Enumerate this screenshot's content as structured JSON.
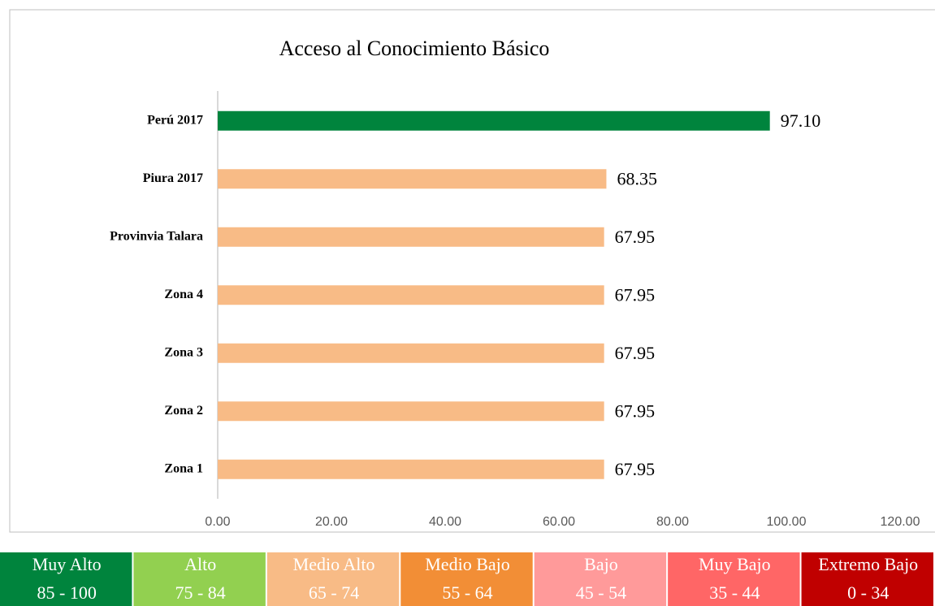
{
  "chart_data": {
    "type": "barh",
    "title": "Acceso al Conocimiento Básico",
    "categories": [
      "Perú 2017",
      "Piura 2017",
      "Provinvia Talara",
      "Zona 4",
      "Zona 3",
      "Zona 2",
      "Zona 1"
    ],
    "values": [
      97.1,
      68.35,
      67.95,
      67.95,
      67.95,
      67.95,
      67.95
    ],
    "value_labels": [
      "97.10",
      "68.35",
      "67.95",
      "67.95",
      "67.95",
      "67.95",
      "67.95"
    ],
    "colors": [
      "#00843d",
      "#f8bb86",
      "#f8bb86",
      "#f8bb86",
      "#f8bb86",
      "#f8bb86",
      "#f8bb86"
    ],
    "xlim": [
      0,
      120
    ],
    "xticks": [
      {
        "value": 0,
        "label": "0.00"
      },
      {
        "value": 20,
        "label": "20.00"
      },
      {
        "value": 40,
        "label": "40.00"
      },
      {
        "value": 60,
        "label": "60.00"
      },
      {
        "value": 80,
        "label": "80.00"
      },
      {
        "value": 100,
        "label": "100.00"
      },
      {
        "value": 120,
        "label": "120.00"
      }
    ],
    "scale": [
      {
        "label": "Muy Alto",
        "range": "85 - 100",
        "color": "#00843d"
      },
      {
        "label": "Alto",
        "range": "75 - 84",
        "color": "#92d050"
      },
      {
        "label": "Medio Alto",
        "range": "65 - 74",
        "color": "#f8bb86"
      },
      {
        "label": "Medio Bajo",
        "range": "55 - 64",
        "color": "#f28e36"
      },
      {
        "label": "Bajo",
        "range": "45 - 54",
        "color": "#ff9a9a"
      },
      {
        "label": "Muy Bajo",
        "range": "35 - 44",
        "color": "#ff6666"
      },
      {
        "label": "Extremo Bajo",
        "range": "0 - 34",
        "color": "#c00000"
      }
    ]
  }
}
